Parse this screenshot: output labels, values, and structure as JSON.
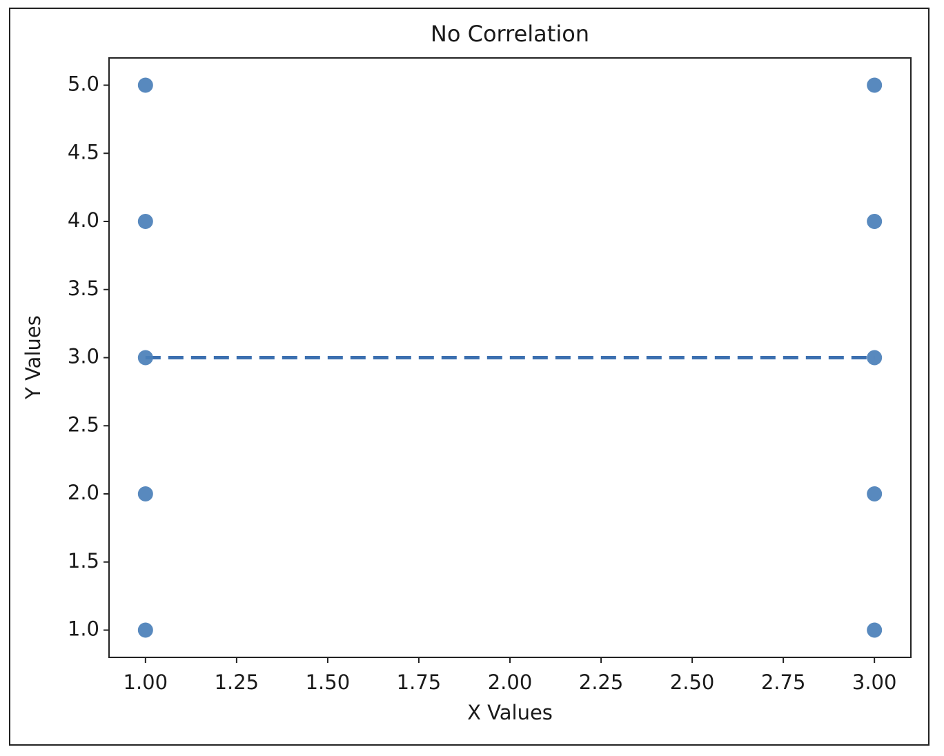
{
  "chart_data": {
    "type": "scatter",
    "title": "No Correlation",
    "x_label": "X Values",
    "y_label": "Y Values",
    "series": [
      {
        "color": "#4a7fb9",
        "x": [
          1,
          1,
          1,
          1,
          1,
          3,
          3,
          3,
          3,
          3
        ],
        "values": [
          1,
          2,
          3,
          4,
          5,
          1,
          2,
          3,
          4,
          5
        ]
      }
    ],
    "trend_line": {
      "color": "#3c70b0",
      "style": "dashed",
      "x": [
        1,
        3
      ],
      "values": [
        3,
        3
      ]
    },
    "xlim": [
      0.9,
      3.1
    ],
    "ylim": [
      0.8,
      5.2
    ],
    "xticks": [
      {
        "value": 1,
        "label": "1.00"
      },
      {
        "value": 1.25,
        "label": "1.25"
      },
      {
        "value": 1.5,
        "label": "1.50"
      },
      {
        "value": 1.75,
        "label": "1.75"
      },
      {
        "value": 2,
        "label": "2.00"
      },
      {
        "value": 2.25,
        "label": "2.25"
      },
      {
        "value": 2.5,
        "label": "2.50"
      },
      {
        "value": 2.75,
        "label": "2.75"
      },
      {
        "value": 3,
        "label": "3.00"
      }
    ],
    "yticks": [
      {
        "value": 1,
        "label": "1.0"
      },
      {
        "value": 1.5,
        "label": "1.5"
      },
      {
        "value": 2,
        "label": "2.0"
      },
      {
        "value": 2.5,
        "label": "2.5"
      },
      {
        "value": 3,
        "label": "3.0"
      },
      {
        "value": 3.5,
        "label": "3.5"
      },
      {
        "value": 4,
        "label": "4.0"
      },
      {
        "value": 4.5,
        "label": "4.5"
      },
      {
        "value": 5,
        "label": "5.0"
      }
    ],
    "grid": false
  }
}
